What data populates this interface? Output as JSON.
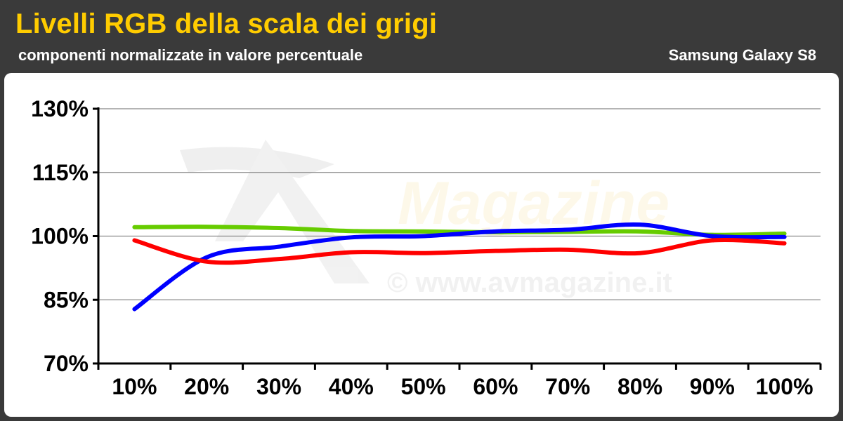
{
  "header": {
    "title": "Livelli RGB della scala dei grigi",
    "subtitle": "componenti normalizzate in valore percentuale",
    "device": "Samsung Galaxy S8"
  },
  "watermark": {
    "brand": "Magazine",
    "url": "© www.avmagazine.it"
  },
  "colors": {
    "background": "#3a3a3a",
    "title": "#ffcc00",
    "red": "#ff0000",
    "green": "#66cc00",
    "blue": "#0000ff"
  },
  "chart_data": {
    "type": "line",
    "title": "Livelli RGB della scala dei grigi",
    "subtitle": "componenti normalizzate in valore percentuale",
    "categories": [
      "10%",
      "20%",
      "30%",
      "40%",
      "50%",
      "60%",
      "70%",
      "80%",
      "90%",
      "100%"
    ],
    "yticks": [
      "130%",
      "115%",
      "100%",
      "85%",
      "70%"
    ],
    "ylim": [
      70,
      130
    ],
    "grid": true,
    "series": [
      {
        "color": "#66cc00",
        "values": [
          102.1,
          102.2,
          101.9,
          101.2,
          101.1,
          100.9,
          101.0,
          101.1,
          100.3,
          100.6
        ]
      },
      {
        "color": "#0000ff",
        "values": [
          82.8,
          95.0,
          97.5,
          99.7,
          100.0,
          101.1,
          101.5,
          102.7,
          100.0,
          99.8
        ]
      },
      {
        "color": "#ff0000",
        "values": [
          99.0,
          94.0,
          94.6,
          96.2,
          96.0,
          96.5,
          96.8,
          96.0,
          99.0,
          98.3
        ]
      }
    ]
  }
}
